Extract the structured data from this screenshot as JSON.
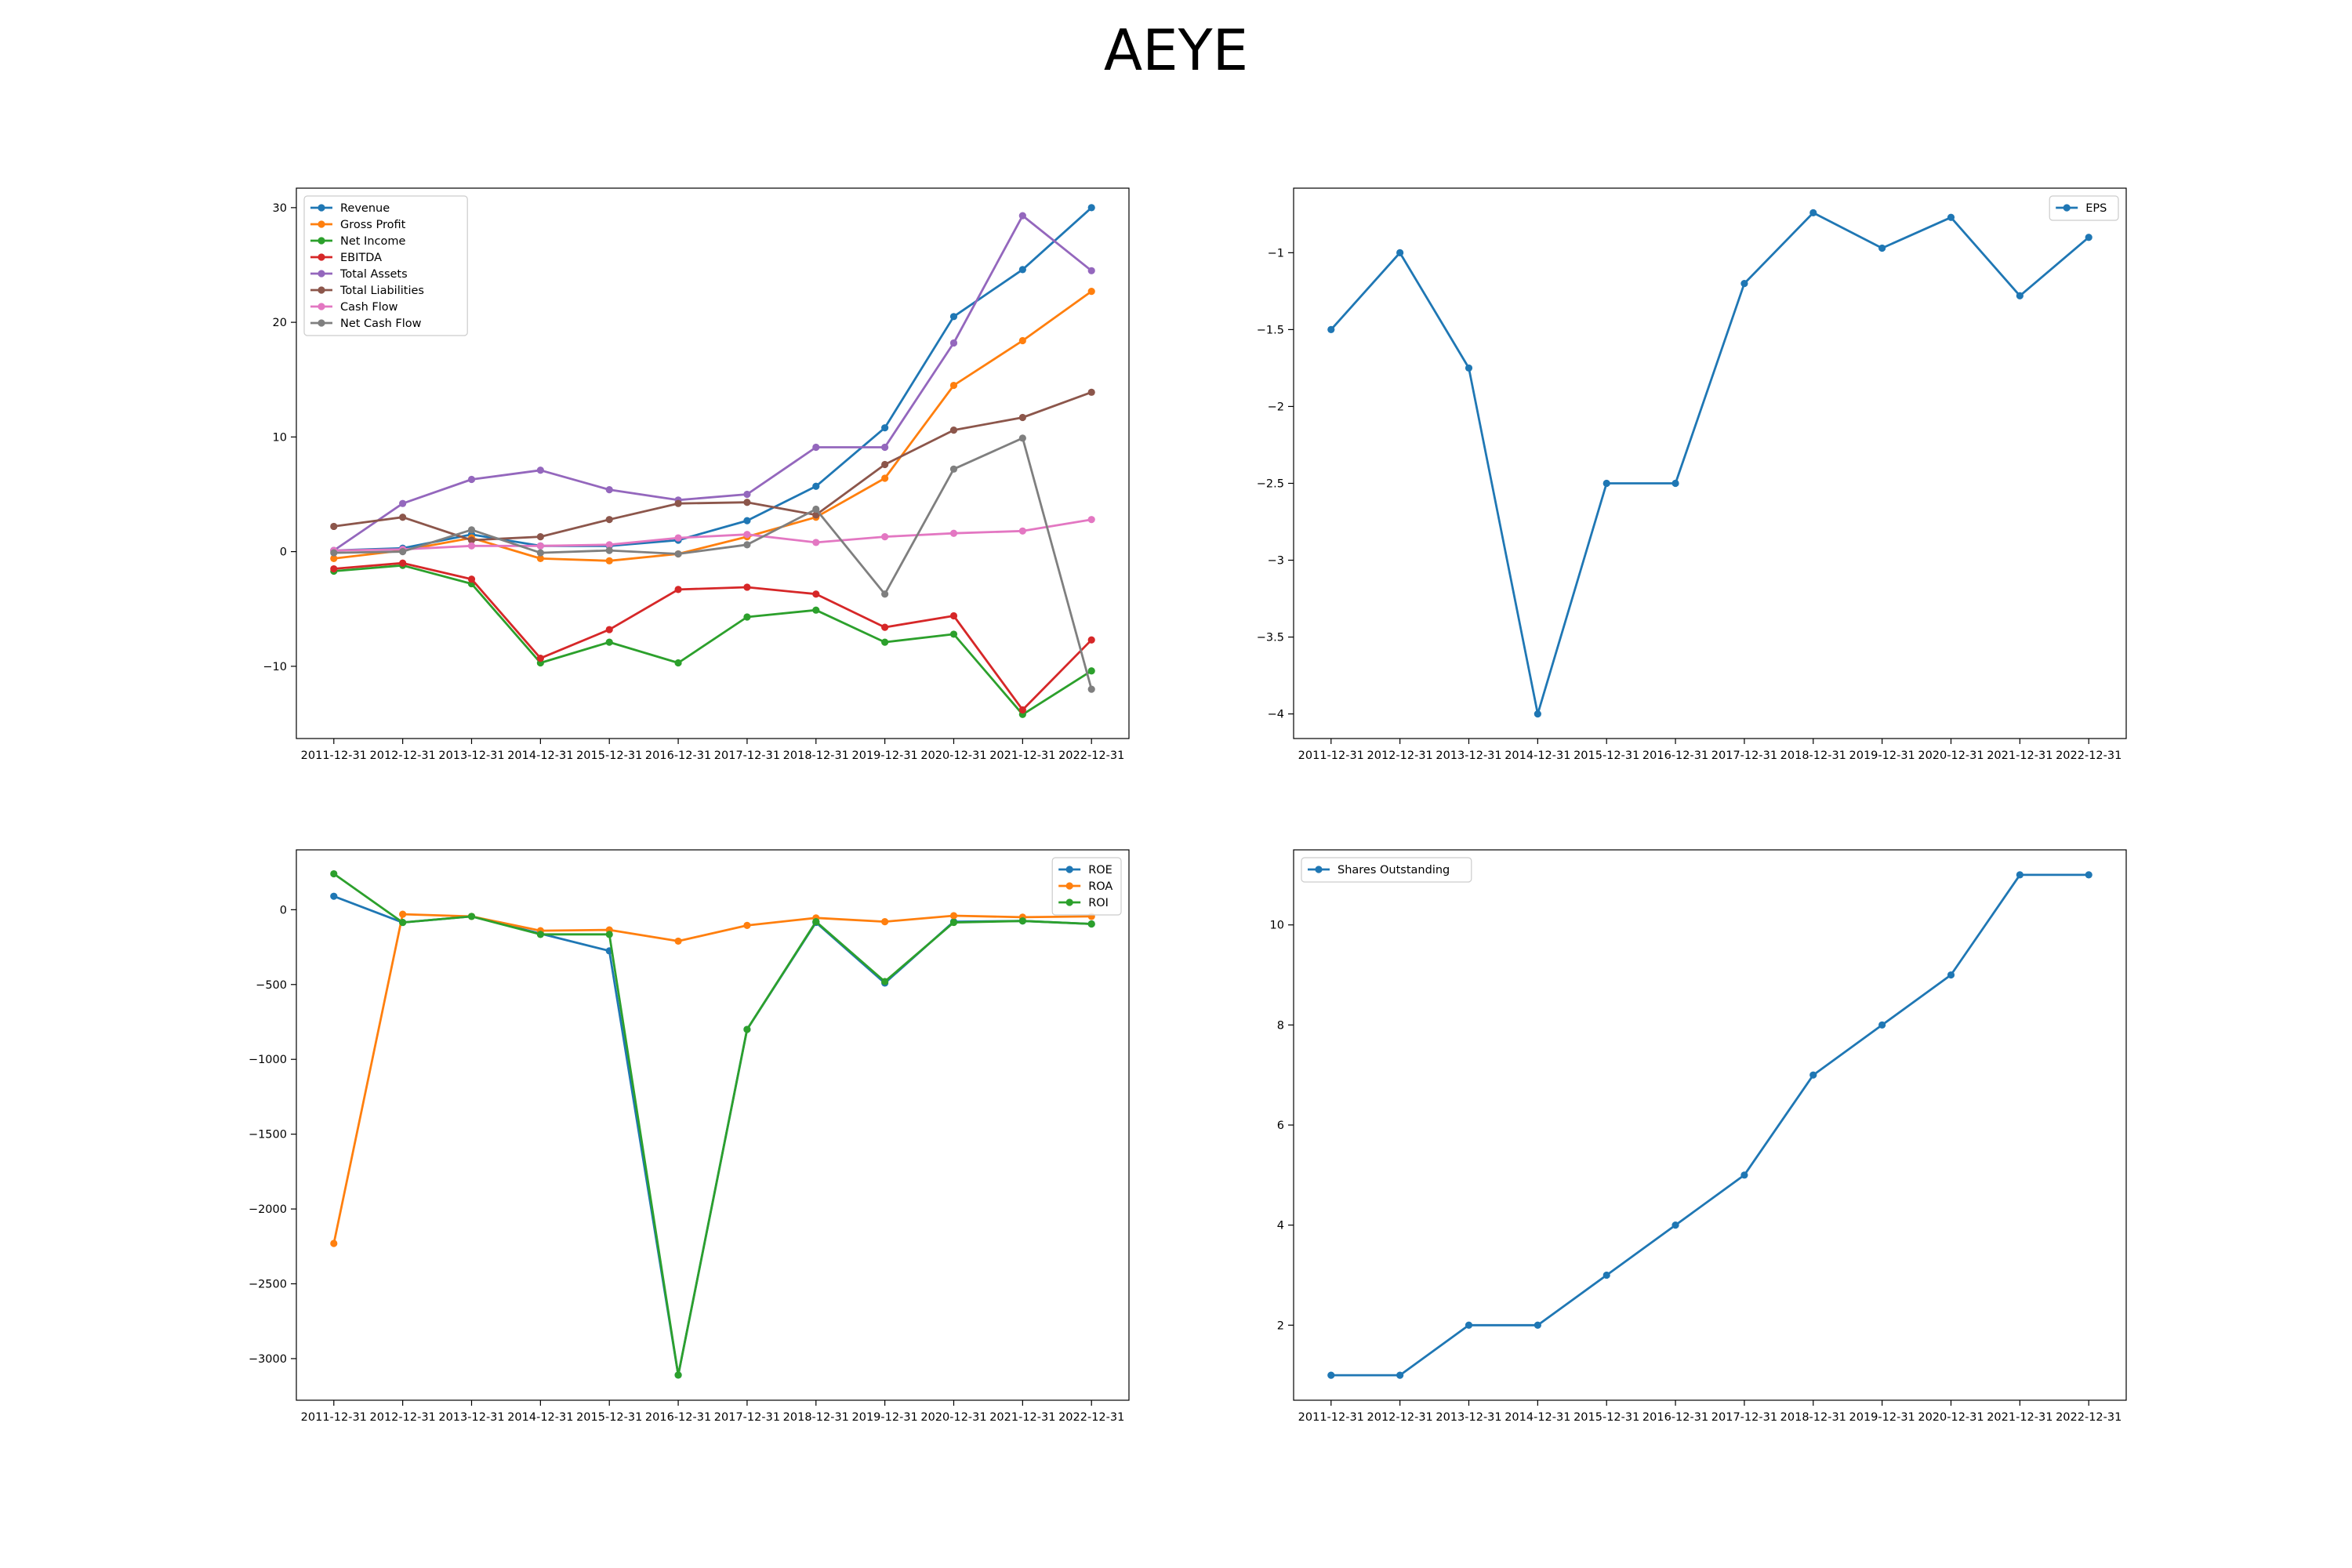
{
  "page": {
    "title": "AEYE"
  },
  "chart_data": [
    {
      "type": "line",
      "title": "",
      "xlabel": "",
      "ylabel": "",
      "legend": "upper-left",
      "grid": false,
      "categories": [
        "2011-12-31",
        "2012-12-31",
        "2013-12-31",
        "2014-12-31",
        "2015-12-31",
        "2016-12-31",
        "2017-12-31",
        "2018-12-31",
        "2019-12-31",
        "2020-12-31",
        "2021-12-31",
        "2022-12-31"
      ],
      "ylim": [
        -16.3,
        31.7
      ],
      "yticks": [
        -10,
        0,
        10,
        20,
        30
      ],
      "series": [
        {
          "name": "Revenue",
          "color": "#1f77b4",
          "values": [
            0.1,
            0.3,
            1.5,
            0.5,
            0.5,
            1.0,
            2.7,
            5.7,
            10.8,
            20.5,
            24.6,
            30.0
          ]
        },
        {
          "name": "Gross Profit",
          "color": "#ff7f0e",
          "values": [
            -0.6,
            0.1,
            1.2,
            -0.6,
            -0.8,
            -0.2,
            1.3,
            3.0,
            6.4,
            14.5,
            18.4,
            22.7
          ]
        },
        {
          "name": "Net Income",
          "color": "#2ca02c",
          "values": [
            -1.7,
            -1.2,
            -2.8,
            -9.7,
            -7.9,
            -9.7,
            -5.7,
            -5.1,
            -7.9,
            -7.2,
            -14.2,
            -10.4
          ]
        },
        {
          "name": "EBITDA",
          "color": "#d62728",
          "values": [
            -1.5,
            -1.0,
            -2.4,
            -9.3,
            -6.8,
            -3.3,
            -3.1,
            -3.7,
            -6.6,
            -5.6,
            -13.8,
            -7.7
          ]
        },
        {
          "name": "Total Assets",
          "color": "#9467bd",
          "values": [
            0.1,
            4.2,
            6.3,
            7.1,
            5.4,
            4.5,
            5.0,
            9.1,
            9.1,
            18.2,
            29.3,
            24.5
          ]
        },
        {
          "name": "Total Liabilities",
          "color": "#8c564b",
          "values": [
            2.2,
            3.0,
            1.0,
            1.3,
            2.8,
            4.2,
            4.3,
            3.2,
            7.6,
            10.6,
            11.7,
            13.9
          ]
        },
        {
          "name": "Cash Flow",
          "color": "#e377c2",
          "values": [
            0.1,
            0.2,
            0.5,
            0.5,
            0.6,
            1.2,
            1.5,
            0.8,
            1.3,
            1.6,
            1.8,
            2.8
          ]
        },
        {
          "name": "Net Cash Flow",
          "color": "#7f7f7f",
          "values": [
            -0.1,
            0.0,
            1.9,
            -0.1,
            0.1,
            -0.2,
            0.6,
            3.7,
            -3.7,
            7.2,
            9.9,
            -12.0
          ]
        }
      ]
    },
    {
      "type": "line",
      "title": "",
      "xlabel": "",
      "ylabel": "",
      "legend": "upper-right",
      "grid": false,
      "categories": [
        "2011-12-31",
        "2012-12-31",
        "2013-12-31",
        "2014-12-31",
        "2015-12-31",
        "2016-12-31",
        "2017-12-31",
        "2018-12-31",
        "2019-12-31",
        "2020-12-31",
        "2021-12-31",
        "2022-12-31"
      ],
      "ylim": [
        -4.16,
        -0.58
      ],
      "yticks": [
        -4.0,
        -3.5,
        -3.0,
        -2.5,
        -2.0,
        -1.5,
        -1.0
      ],
      "series": [
        {
          "name": "EPS",
          "color": "#1f77b4",
          "values": [
            -1.5,
            -1.0,
            -1.75,
            -4.0,
            -2.5,
            -2.5,
            -1.2,
            -0.74,
            -0.97,
            -0.77,
            -1.28,
            -0.9
          ]
        }
      ]
    },
    {
      "type": "line",
      "title": "",
      "xlabel": "",
      "ylabel": "",
      "legend": "upper-right",
      "grid": false,
      "categories": [
        "2011-12-31",
        "2012-12-31",
        "2013-12-31",
        "2014-12-31",
        "2015-12-31",
        "2016-12-31",
        "2017-12-31",
        "2018-12-31",
        "2019-12-31",
        "2020-12-31",
        "2021-12-31",
        "2022-12-31"
      ],
      "ylim": [
        -3278,
        400
      ],
      "yticks": [
        -3000,
        -2500,
        -2000,
        -1500,
        -1000,
        -500,
        0
      ],
      "series": [
        {
          "name": "ROE",
          "color": "#1f77b4",
          "values": [
            90,
            -85,
            -45,
            -160,
            -275,
            -3110,
            -800,
            -85,
            -490,
            -80,
            -75,
            -95
          ]
        },
        {
          "name": "ROA",
          "color": "#ff7f0e",
          "values": [
            -2230,
            -30,
            -45,
            -140,
            -135,
            -210,
            -105,
            -55,
            -80,
            -40,
            -50,
            -45
          ]
        },
        {
          "name": "ROI",
          "color": "#2ca02c",
          "values": [
            240,
            -85,
            -45,
            -165,
            -165,
            -3110,
            -800,
            -80,
            -480,
            -85,
            -75,
            -95
          ]
        }
      ]
    },
    {
      "type": "line",
      "title": "",
      "xlabel": "",
      "ylabel": "",
      "legend": "upper-left",
      "grid": false,
      "categories": [
        "2011-12-31",
        "2012-12-31",
        "2013-12-31",
        "2014-12-31",
        "2015-12-31",
        "2016-12-31",
        "2017-12-31",
        "2018-12-31",
        "2019-12-31",
        "2020-12-31",
        "2021-12-31",
        "2022-12-31"
      ],
      "ylim": [
        0.5,
        11.5
      ],
      "yticks": [
        2,
        4,
        6,
        8,
        10
      ],
      "series": [
        {
          "name": "Shares Outstanding",
          "color": "#1f77b4",
          "values": [
            1,
            1,
            2,
            2,
            3,
            4,
            5,
            7,
            8,
            9,
            11,
            11
          ]
        }
      ]
    }
  ]
}
